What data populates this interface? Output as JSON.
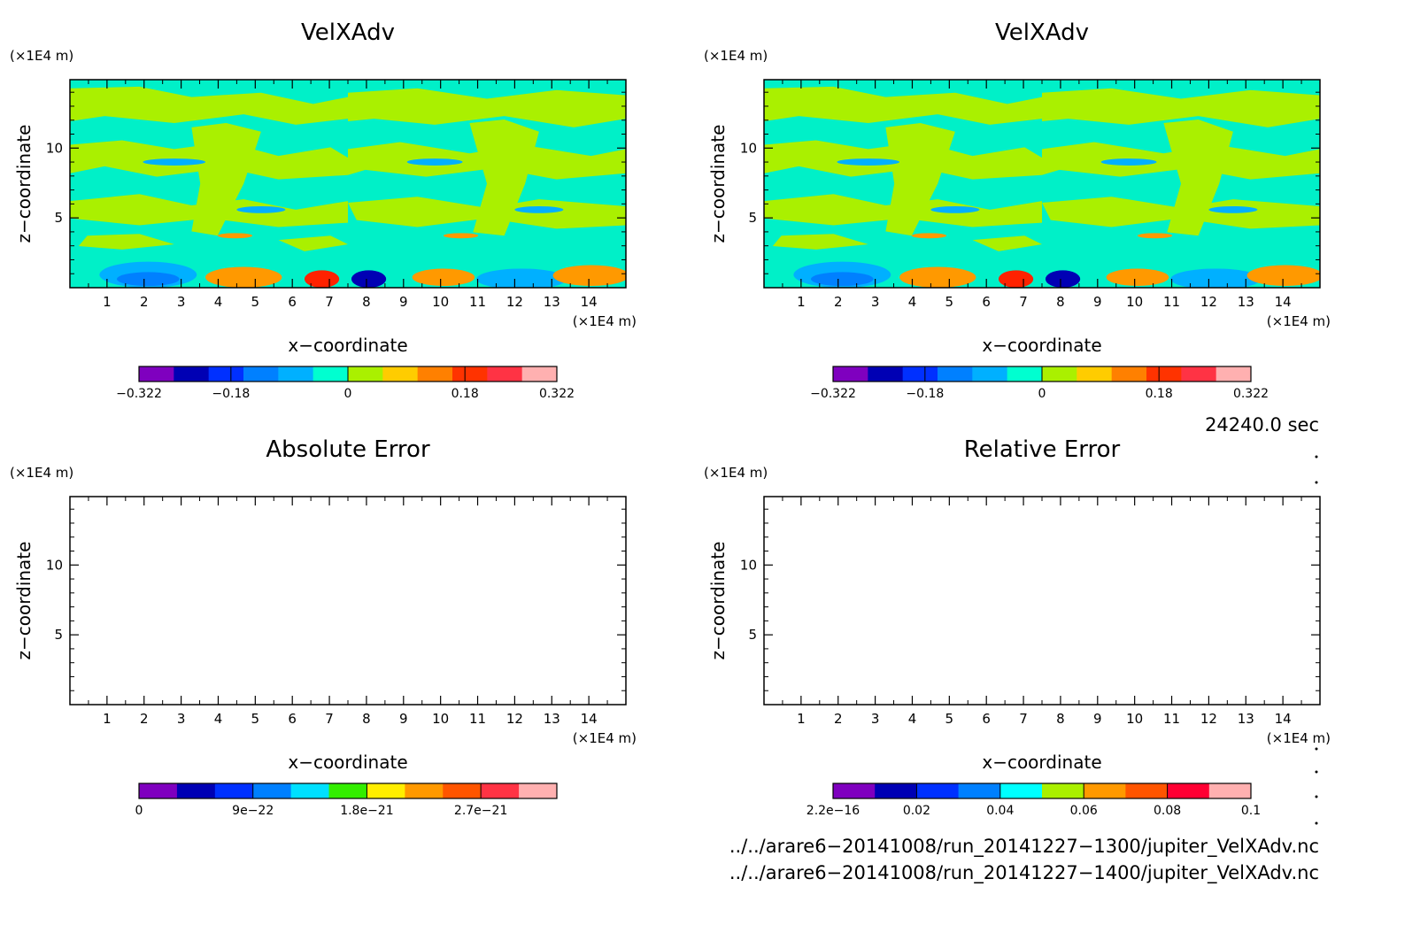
{
  "chart_data": [
    {
      "type": "heatmap",
      "title": "VelXAdv",
      "xlabel": "x−coordinate",
      "ylabel": "z−coordinate",
      "x_unit": "(×1E4 m)",
      "y_unit": "(×1E4 m)",
      "xlim": [
        0,
        15
      ],
      "ylim": [
        0,
        14.9
      ],
      "x_ticks": [
        "1",
        "2",
        "3",
        "4",
        "5",
        "6",
        "7",
        "8",
        "9",
        "10",
        "11",
        "12",
        "13",
        "14"
      ],
      "y_ticks": [
        "5",
        "10"
      ],
      "colorbar_ticks": [
        "−0.322",
        "−0.18",
        "0",
        "0.18",
        "0.322"
      ],
      "colorbar_colors": [
        "#7f00bf",
        "#0000b4",
        "#0030ff",
        "#0080ff",
        "#00b0ff",
        "#00ffd0",
        "#aaf000",
        "#ffcc00",
        "#ff8000",
        "#ff3300",
        "#ff3344",
        "#ffb0b0"
      ]
    },
    {
      "type": "heatmap",
      "title": "VelXAdv",
      "xlabel": "x−coordinate",
      "ylabel": "z−coordinate",
      "x_unit": "(×1E4 m)",
      "y_unit": "(×1E4 m)",
      "xlim": [
        0,
        15
      ],
      "ylim": [
        0,
        14.9
      ],
      "x_ticks": [
        "1",
        "2",
        "3",
        "4",
        "5",
        "6",
        "7",
        "8",
        "9",
        "10",
        "11",
        "12",
        "13",
        "14"
      ],
      "y_ticks": [
        "5",
        "10"
      ],
      "colorbar_ticks": [
        "−0.322",
        "−0.18",
        "0",
        "0.18",
        "0.322"
      ],
      "colorbar_colors": [
        "#7f00bf",
        "#0000b4",
        "#0030ff",
        "#0080ff",
        "#00b0ff",
        "#00ffd0",
        "#aaf000",
        "#ffcc00",
        "#ff8000",
        "#ff3300",
        "#ff3344",
        "#ffb0b0"
      ]
    },
    {
      "type": "heatmap",
      "title": "Absolute Error",
      "xlabel": "x−coordinate",
      "ylabel": "z−coordinate",
      "x_unit": "(×1E4 m)",
      "y_unit": "(×1E4 m)",
      "xlim": [
        0,
        15
      ],
      "ylim": [
        0,
        14.9
      ],
      "x_ticks": [
        "1",
        "2",
        "3",
        "4",
        "5",
        "6",
        "7",
        "8",
        "9",
        "10",
        "11",
        "12",
        "13",
        "14"
      ],
      "y_ticks": [
        "5",
        "10"
      ],
      "colorbar_ticks": [
        "0",
        "9e−22",
        "1.8e−21",
        "2.7e−21"
      ],
      "colorbar_colors": [
        "#7f00bf",
        "#0000b4",
        "#0030ff",
        "#0080ff",
        "#00e0ff",
        "#33ee00",
        "#ffee00",
        "#ff9900",
        "#ff5500",
        "#ff3344",
        "#ffb0b0"
      ]
    },
    {
      "type": "heatmap",
      "title": "Relative Error",
      "xlabel": "x−coordinate",
      "ylabel": "z−coordinate",
      "x_unit": "(×1E4 m)",
      "y_unit": "(×1E4 m)",
      "xlim": [
        0,
        15
      ],
      "ylim": [
        0,
        14.9
      ],
      "x_ticks": [
        "1",
        "2",
        "3",
        "4",
        "5",
        "6",
        "7",
        "8",
        "9",
        "10",
        "11",
        "12",
        "13",
        "14"
      ],
      "y_ticks": [
        "5",
        "10"
      ],
      "colorbar_ticks": [
        "2.2e−16",
        "0.02",
        "0.04",
        "0.06",
        "0.08",
        "0.1"
      ],
      "colorbar_colors": [
        "#7f00bf",
        "#0000b4",
        "#0030ff",
        "#0080ff",
        "#00ffff",
        "#aaf000",
        "#ff9900",
        "#ff5500",
        "#ff0033",
        "#ffb0b0"
      ]
    }
  ],
  "time_label": "24240.0 sec",
  "files": [
    "../../arare6−20141008/run_20141227−1300/jupiter_VelXAdv.nc",
    "../../arare6−20141008/run_20141227−1400/jupiter_VelXAdv.nc"
  ],
  "field_colors": {
    "cyan": "#00f0c8",
    "lime": "#aaf000",
    "azure": "#00b0ff",
    "blue": "#0080ff",
    "dark_blue": "#0000b4",
    "orange": "#ff9900",
    "red": "#ff2200"
  }
}
